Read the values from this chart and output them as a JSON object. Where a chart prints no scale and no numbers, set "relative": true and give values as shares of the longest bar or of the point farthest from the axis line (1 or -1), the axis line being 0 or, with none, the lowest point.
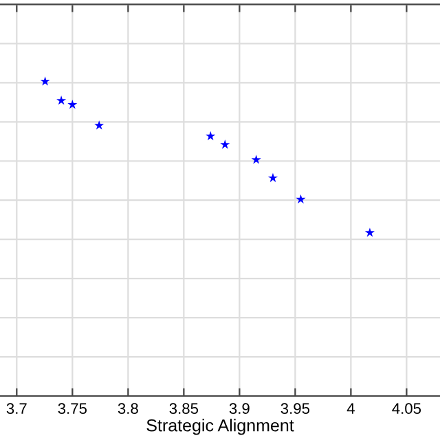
{
  "chart_data": {
    "type": "scatter",
    "xlabel": "Strategic Alignment",
    "relative": true,
    "marker": "star",
    "grid": true,
    "tick_labels": "x",
    "xlim": [
      3.685,
      4.08
    ],
    "xticks": [
      3.7,
      3.75,
      3.8,
      3.85,
      3.9,
      3.95,
      4,
      4.05
    ],
    "x": [
      3.7255,
      3.74,
      3.75,
      3.774,
      3.874,
      3.887,
      3.915,
      3.93,
      3.955,
      4.017
    ],
    "series": [
      {
        "color": "#0000ff",
        "values": [
          1,
          0.939,
          0.926,
          0.86,
          0.826,
          0.799,
          0.751,
          0.693,
          0.625,
          0.519
        ]
      }
    ]
  }
}
